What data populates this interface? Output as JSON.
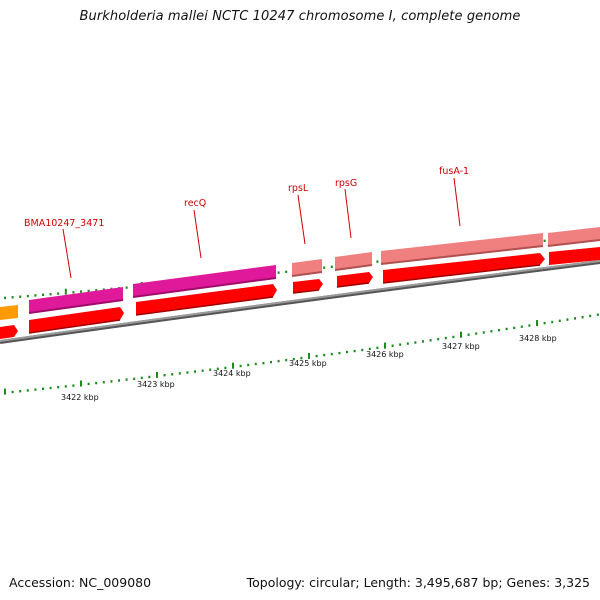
{
  "title": "Burkholderia mallei NCTC 10247 chromosome I, complete genome",
  "footer": {
    "accession": "Accession: NC_009080",
    "topology": "Topology: circular; Length: 3,495,687 bp; Genes: 3,325"
  },
  "colors": {
    "backbone": "#808080",
    "cds_red": "#ff0000",
    "gene_magenta": "#e0189a",
    "gene_pink": "#f08080",
    "gene_orange": "#ff9a00",
    "tick_green": "#1a8a1a",
    "label_red": "#d00000"
  },
  "scale_labels": [
    "3422 kbp",
    "3423 kbp",
    "3424 kbp",
    "3425 kbp",
    "3426 kbp",
    "3427 kbp",
    "3428 kbp"
  ],
  "genes": [
    {
      "name": "BMA10247_3471",
      "color_key": "gene_magenta"
    },
    {
      "name": "recQ",
      "color_key": "gene_magenta"
    },
    {
      "name": "rpsL",
      "color_key": "gene_pink"
    },
    {
      "name": "rpsG",
      "color_key": "gene_pink"
    },
    {
      "name": "fusA-1",
      "color_key": "gene_pink"
    }
  ]
}
